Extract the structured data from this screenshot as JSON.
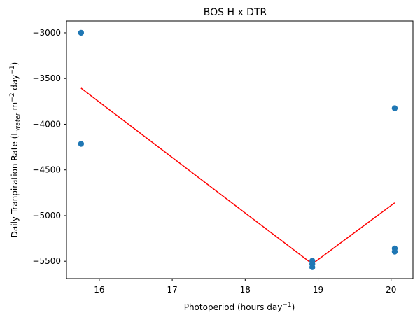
{
  "chart_data": {
    "type": "scatter",
    "title": "BOS H x DTR",
    "xlabel": {
      "main": "Photoperiod (hours day",
      "sup": "−1",
      "tail": ")"
    },
    "ylabel": {
      "p1": "Daily Tranpiration Rate (L",
      "sub": "water",
      "p2": " m",
      "sup1": "−2",
      "p3": " day",
      "sup2": "−1",
      "p4": ")"
    },
    "xlim": [
      15.55,
      20.3
    ],
    "ylim": [
      -5690,
      -2870
    ],
    "xticks": [
      16,
      17,
      18,
      19,
      20
    ],
    "xtick_labels": [
      "16",
      "17",
      "18",
      "19",
      "20"
    ],
    "yticks": [
      -3000,
      -3500,
      -4000,
      -4500,
      -5000,
      -5500
    ],
    "ytick_labels": [
      "−3000",
      "−3500",
      "−4000",
      "−4500",
      "−5000",
      "−5500"
    ],
    "grid": false,
    "scatter": {
      "color": "#1f77b4",
      "points": [
        {
          "x": 15.75,
          "y": -3000
        },
        {
          "x": 15.75,
          "y": -4215
        },
        {
          "x": 18.92,
          "y": -5495
        },
        {
          "x": 18.92,
          "y": -5530
        },
        {
          "x": 18.92,
          "y": -5565
        },
        {
          "x": 20.05,
          "y": -3825
        },
        {
          "x": 20.05,
          "y": -5360
        },
        {
          "x": 20.05,
          "y": -5395
        }
      ]
    },
    "fit_line": {
      "color": "#ff0000",
      "x": [
        15.75,
        18.92,
        20.05
      ],
      "y": [
        -3605,
        -5530,
        -4860
      ]
    }
  }
}
